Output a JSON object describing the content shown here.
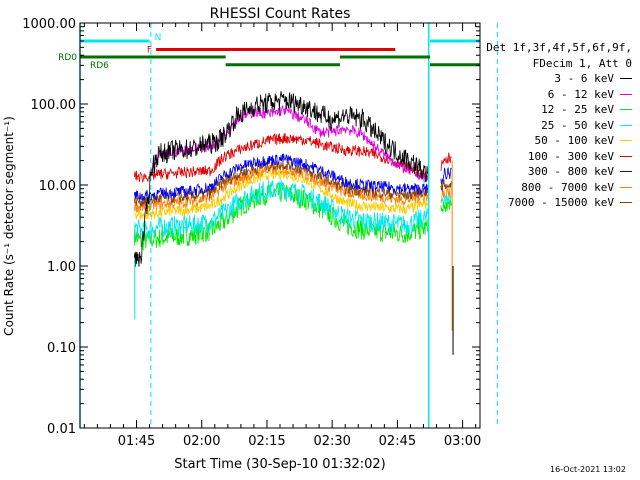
{
  "chart_data": {
    "type": "line",
    "title": "RHESSI Count Rates",
    "xlabel": "Start Time (30-Sep-10 01:32:02)",
    "ylabel": "Count Rate (s⁻¹ detector segment⁻¹)",
    "y_scale": "log",
    "ylim": [
      0.01,
      1000
    ],
    "xlim_minutes": [
      0,
      92
    ],
    "y_ticks": [
      "1000.00",
      "100.00",
      "10.00",
      "1.00",
      "0.10",
      "0.01"
    ],
    "x_ticks": [
      {
        "label": "01:45",
        "t": 13
      },
      {
        "label": "02:00",
        "t": 28
      },
      {
        "label": "02:15",
        "t": 43
      },
      {
        "label": "02:30",
        "t": 58
      },
      {
        "label": "02:45",
        "t": 73
      },
      {
        "label": "03:00",
        "t": 88
      }
    ],
    "legend_header": [
      "Det 1f,3f,4f,5f,6f,9f,",
      "FDecim 1, Att 0"
    ],
    "data_gaps": [
      [
        0,
        12.5
      ],
      [
        80.5,
        83
      ]
    ],
    "vertical_markers": {
      "solid": [
        0,
        80.2
      ],
      "dashed": [
        16.3,
        96
      ]
    },
    "flags": [
      {
        "name": "N",
        "color": "#00e8e8",
        "segments": [
          [
            0,
            16
          ],
          [
            80.5,
            100
          ]
        ],
        "level": 600
      },
      {
        "name": "F",
        "color": "#e00000",
        "segments": [
          [
            17.5,
            72.5
          ]
        ],
        "level": 470
      },
      {
        "name": "RD0",
        "color": "#007000",
        "segments": [
          [
            0,
            33.5
          ],
          [
            59.8,
            80.5
          ]
        ],
        "level": 380
      },
      {
        "name": "RD6",
        "color": "#007000",
        "segments": [
          [
            33.5,
            59.8
          ],
          [
            80.5,
            100
          ]
        ],
        "level": 305
      }
    ],
    "series": [
      {
        "name": "3 - 6 keV",
        "color": "#000000",
        "t": [
          12.5,
          14,
          16.5,
          18,
          22,
          26,
          29,
          31,
          33,
          36,
          40,
          44,
          47,
          52,
          55,
          58,
          61,
          65,
          69,
          73,
          77,
          80
        ],
        "values": [
          1.2,
          1.3,
          16,
          24,
          27,
          28,
          32,
          33,
          40,
          70,
          95,
          105,
          112,
          95,
          75,
          65,
          72,
          65,
          38,
          25,
          18,
          13
        ]
      },
      {
        "name": "6 - 12 keV",
        "color": "#dd00dd",
        "t": [
          16.5,
          18,
          22,
          26,
          29,
          31,
          33,
          36,
          40,
          44,
          47,
          52,
          55,
          58,
          61,
          65,
          69,
          73,
          77,
          80
        ],
        "values": [
          15,
          22,
          26,
          28,
          30,
          32,
          42,
          65,
          80,
          75,
          85,
          62,
          45,
          45,
          50,
          42,
          26,
          18,
          14,
          12
        ]
      },
      {
        "name": "12 - 25 keV",
        "color": "#00e800",
        "t": [
          12.5,
          14,
          16,
          18,
          22,
          26,
          30,
          33,
          37,
          42,
          47,
          52,
          57,
          61,
          65,
          70,
          75,
          80
        ],
        "values": [
          2.4,
          2.0,
          2.1,
          2.2,
          2.3,
          2.4,
          2.7,
          3.5,
          5.5,
          7.5,
          8.0,
          6.5,
          4.5,
          3.2,
          2.8,
          2.6,
          2.5,
          3.0
        ]
      },
      {
        "name": "25 - 50 keV",
        "color": "#00e8e8",
        "t": [
          12.5,
          14,
          16,
          18,
          22,
          26,
          30,
          33,
          37,
          42,
          47,
          52,
          57,
          61,
          65,
          70,
          75,
          80
        ],
        "values": [
          3.0,
          2.7,
          2.8,
          3.0,
          3.1,
          3.2,
          3.5,
          4.5,
          6.5,
          8.5,
          9.0,
          7.5,
          5.5,
          4.0,
          3.6,
          3.4,
          3.2,
          4.0
        ]
      },
      {
        "name": "50 - 100 keV",
        "color": "#ffc800",
        "t": [
          12.5,
          14,
          16,
          18,
          22,
          26,
          30,
          33,
          37,
          42,
          47,
          52,
          57,
          61,
          65,
          70,
          75,
          80
        ],
        "values": [
          4.5,
          4.2,
          4.3,
          4.5,
          4.8,
          5.0,
          5.5,
          7.0,
          10,
          13,
          14,
          11.5,
          8.0,
          6.0,
          5.5,
          5.2,
          5.0,
          6.0
        ]
      },
      {
        "name": "100 - 300 keV",
        "color": "#e00000",
        "t": [
          12.5,
          14,
          16,
          18,
          22,
          26,
          30,
          33,
          37,
          42,
          47,
          52,
          57,
          61,
          65,
          70,
          75,
          80
        ],
        "values": [
          13,
          12.5,
          13,
          13.5,
          14,
          14.5,
          15,
          22,
          28,
          34,
          38,
          36,
          30,
          27,
          26,
          22,
          17,
          12.5
        ]
      },
      {
        "name": "300 - 800 keV",
        "color": "#0000ee",
        "t": [
          12.5,
          14,
          16,
          18,
          22,
          26,
          30,
          33,
          37,
          42,
          47,
          52,
          57,
          61,
          65,
          70,
          75,
          80
        ],
        "values": [
          7.5,
          7.3,
          7.5,
          7.8,
          8.2,
          8.5,
          9.5,
          13,
          17,
          20,
          21,
          18,
          14,
          11,
          10,
          9.5,
          9.0,
          9.0
        ]
      },
      {
        "name": "800 - 7000 keV",
        "color": "#ff8000",
        "t": [
          12.5,
          14,
          16,
          18,
          22,
          26,
          30,
          33,
          37,
          42,
          47,
          52,
          57,
          61,
          65,
          70,
          75,
          80
        ],
        "values": [
          5.5,
          5.3,
          5.5,
          5.8,
          6.0,
          6.3,
          7.0,
          9.5,
          12,
          15,
          16,
          13.5,
          10,
          8.0,
          7.5,
          7.0,
          6.5,
          7.5
        ]
      },
      {
        "name": "7000 - 15000 keV",
        "color": "#8b4513",
        "t": [
          12.5,
          14,
          16,
          18,
          22,
          26,
          30,
          33,
          37,
          42,
          47,
          52,
          57,
          61,
          65,
          70,
          75,
          80
        ],
        "values": [
          6.5,
          6.3,
          6.5,
          6.8,
          7.0,
          7.3,
          8.0,
          11,
          14,
          17,
          18,
          15,
          11.5,
          9.0,
          8.5,
          8.0,
          7.5,
          8.5
        ]
      }
    ],
    "post_gap": [
      {
        "t": [
          83,
          84,
          85.5
        ],
        "values": [
          16,
          20,
          22
        ],
        "color": "#e00000"
      },
      {
        "t": [
          83,
          84,
          85.5
        ],
        "values": [
          12,
          14,
          14
        ],
        "color": "#0000ee"
      },
      {
        "t": [
          83,
          84,
          85.5
        ],
        "values": [
          9,
          10,
          10
        ],
        "color": "#8b4513"
      },
      {
        "t": [
          83,
          84,
          85.5
        ],
        "values": [
          7,
          8,
          8
        ],
        "color": "#ff8000"
      },
      {
        "t": [
          83,
          84,
          85.5
        ],
        "values": [
          6,
          6.5,
          6.5
        ],
        "color": "#00e8e8"
      },
      {
        "t": [
          83,
          84,
          85.5
        ],
        "values": [
          5,
          5.5,
          5.5
        ],
        "color": "#00e800"
      }
    ],
    "drops": [
      {
        "t": 12.6,
        "from": 1.2,
        "to": 0.22,
        "color": "#00e8e8"
      },
      {
        "t": 85.6,
        "from": 20,
        "to": 0.16,
        "color": "#ff8000"
      },
      {
        "t": 85.8,
        "from": 1.0,
        "to": 0.08,
        "color": "#000000"
      }
    ]
  },
  "footer_timestamp": "16-Oct-2021 13:02"
}
